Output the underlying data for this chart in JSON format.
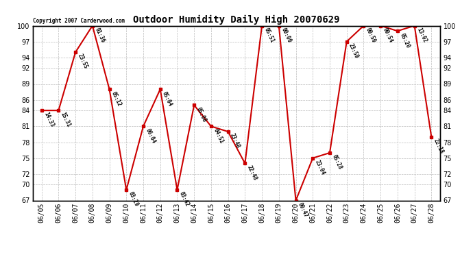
{
  "title": "Outdoor Humidity Daily High 20070629",
  "copyright": "Copyright 2007 Carderwood.com",
  "bg_color": "#ffffff",
  "line_color": "#cc0000",
  "marker_color": "#cc0000",
  "grid_color": "#bbbbbb",
  "text_color": "#000000",
  "ylim": [
    67,
    100
  ],
  "yticks": [
    67,
    70,
    72,
    75,
    78,
    81,
    84,
    86,
    89,
    92,
    94,
    97,
    100
  ],
  "points": [
    {
      "date": "06/05",
      "value": 84,
      "label": "14:33"
    },
    {
      "date": "06/06",
      "value": 84,
      "label": "15:31"
    },
    {
      "date": "06/07",
      "value": 95,
      "label": "23:55"
    },
    {
      "date": "06/08",
      "value": 100,
      "label": "01:36"
    },
    {
      "date": "06/09",
      "value": 88,
      "label": "05:12"
    },
    {
      "date": "06/10",
      "value": 69,
      "label": "03:29"
    },
    {
      "date": "06/11",
      "value": 81,
      "label": "06:04"
    },
    {
      "date": "06/12",
      "value": 88,
      "label": "05:04"
    },
    {
      "date": "06/13",
      "value": 69,
      "label": "03:42"
    },
    {
      "date": "06/14",
      "value": 85,
      "label": "05:08"
    },
    {
      "date": "06/15",
      "value": 81,
      "label": "04:51"
    },
    {
      "date": "06/16",
      "value": 80,
      "label": "23:48"
    },
    {
      "date": "06/17",
      "value": 74,
      "label": "22:48"
    },
    {
      "date": "06/18",
      "value": 100,
      "label": "05:51"
    },
    {
      "date": "06/19",
      "value": 100,
      "label": "00:00"
    },
    {
      "date": "06/20",
      "value": 67,
      "label": "00:47"
    },
    {
      "date": "06/21",
      "value": 75,
      "label": "23:04"
    },
    {
      "date": "06/22",
      "value": 76,
      "label": "05:28"
    },
    {
      "date": "06/23",
      "value": 97,
      "label": "23:59"
    },
    {
      "date": "06/24",
      "value": 100,
      "label": "00:50"
    },
    {
      "date": "06/25",
      "value": 100,
      "label": "00:54"
    },
    {
      "date": "06/26",
      "value": 99,
      "label": "05:20"
    },
    {
      "date": "06/27",
      "value": 100,
      "label": "13:02"
    },
    {
      "date": "06/28",
      "value": 79,
      "label": "22:18"
    }
  ]
}
